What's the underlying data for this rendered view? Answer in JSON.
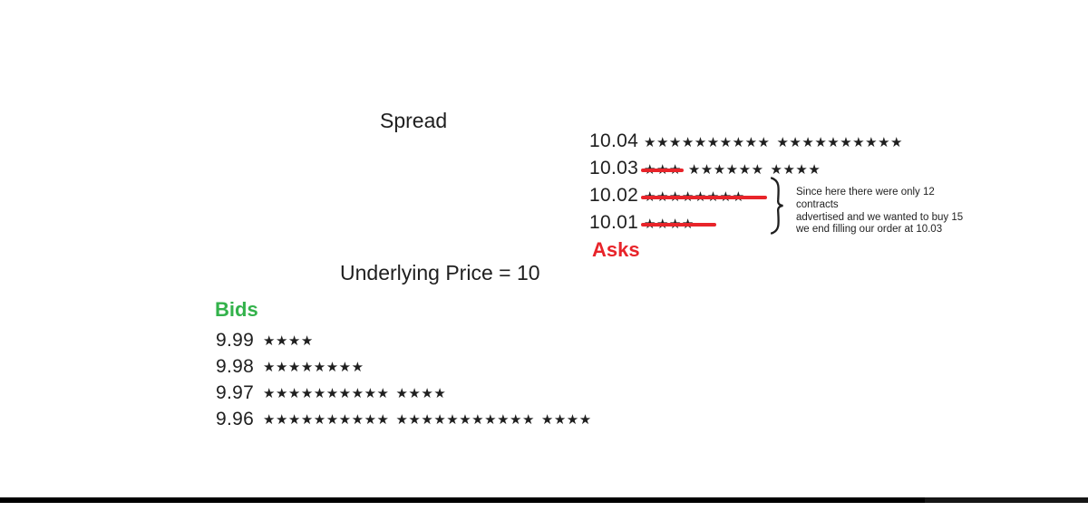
{
  "title": "Spread",
  "underlying_price_label": "Underlying Price = 10",
  "star_char": "★",
  "colors": {
    "red": "#e8242a",
    "green": "#33b24b",
    "ink": "#1f1f1f"
  },
  "asks": {
    "label": "Asks",
    "levels": [
      {
        "price": "10.04",
        "total_stars": 20,
        "struck_stars": 0,
        "open_groups": [
          10,
          10
        ],
        "strike_overhang": false
      },
      {
        "price": "10.03",
        "total_stars": 13,
        "struck_stars": 3,
        "open_groups": [
          6,
          4
        ],
        "strike_overhang": false
      },
      {
        "price": "10.02",
        "total_stars": 8,
        "struck_stars": 8,
        "open_groups": [],
        "strike_overhang": true
      },
      {
        "price": "10.01",
        "total_stars": 4,
        "struck_stars": 4,
        "open_groups": [],
        "strike_overhang": true
      }
    ]
  },
  "bids": {
    "label": "Bids",
    "levels": [
      {
        "price": "9.99",
        "total_stars": 4,
        "struck_stars": 0,
        "open_groups": [
          4
        ],
        "strike_overhang": false
      },
      {
        "price": "9.98",
        "total_stars": 8,
        "struck_stars": 0,
        "open_groups": [
          8
        ],
        "strike_overhang": false
      },
      {
        "price": "9.97",
        "total_stars": 14,
        "struck_stars": 0,
        "open_groups": [
          10,
          4
        ],
        "strike_overhang": false
      },
      {
        "price": "9.96",
        "total_stars": 25,
        "struck_stars": 0,
        "open_groups": [
          10,
          11,
          4
        ],
        "strike_overhang": false
      }
    ]
  },
  "annotation": {
    "lines": [
      "Since here there were only 12 contracts",
      "advertised and we wanted to buy 15",
      "we end filling our order at 10.03"
    ]
  },
  "progress_bar": {
    "played_percent": 85
  }
}
